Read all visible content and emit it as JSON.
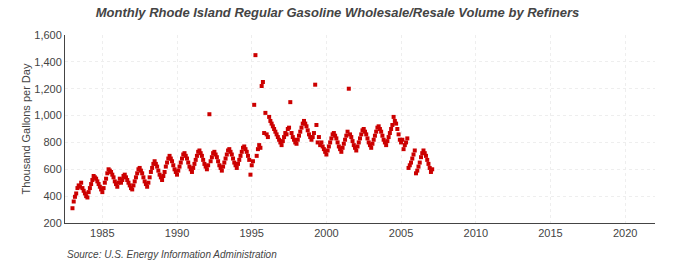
{
  "chart_data": {
    "type": "scatter",
    "title": "Monthly Rhode Island Regular Gasoline Wholesale/Resale Volume by Refiners",
    "y_label": "Thousand Gallons per Day",
    "annotations": [
      "Source: U.S. Energy Information Administration"
    ],
    "color": "#CC0000",
    "marker": "square",
    "grid": true,
    "xlim": [
      1982.5,
      2022
    ],
    "xticks": [
      1985,
      1990,
      1995,
      2000,
      2005,
      2010,
      2015,
      2020
    ],
    "ylim": [
      200,
      1600
    ],
    "yticks": [
      200,
      400,
      600,
      800,
      {
        "value": 1000,
        "label": "1,000"
      },
      {
        "value": 1200,
        "label": "1,200"
      },
      {
        "value": 1400,
        "label": "1,400"
      },
      {
        "value": 1600,
        "label": "1,600"
      }
    ],
    "x": [
      1983,
      1983.0833333333,
      1983.1666666667,
      1983.25,
      1983.3333333333,
      1983.4166666667,
      1983.5,
      1983.5833333333,
      1983.6666666667,
      1983.75,
      1983.8333333333,
      1983.9166666667,
      1984,
      1984.0833333333,
      1984.1666666667,
      1984.25,
      1984.3333333333,
      1984.4166666667,
      1984.5,
      1984.5833333333,
      1984.6666666667,
      1984.75,
      1984.8333333333,
      1984.9166666667,
      1985,
      1985.0833333333,
      1985.1666666667,
      1985.25,
      1985.3333333333,
      1985.4166666667,
      1985.5,
      1985.5833333333,
      1985.6666666667,
      1985.75,
      1985.8333333333,
      1985.9166666667,
      1986,
      1986.0833333333,
      1986.1666666667,
      1986.25,
      1986.3333333333,
      1986.4166666667,
      1986.5,
      1986.5833333333,
      1986.6666666667,
      1986.75,
      1986.8333333333,
      1986.9166666667,
      1987,
      1987.0833333333,
      1987.1666666667,
      1987.25,
      1987.3333333333,
      1987.4166666667,
      1987.5,
      1987.5833333333,
      1987.6666666667,
      1987.75,
      1987.8333333333,
      1987.9166666667,
      1988,
      1988.0833333333,
      1988.1666666667,
      1988.25,
      1988.3333333333,
      1988.4166666667,
      1988.5,
      1988.5833333333,
      1988.6666666667,
      1988.75,
      1988.8333333333,
      1988.9166666667,
      1989,
      1989.0833333333,
      1989.1666666667,
      1989.25,
      1989.3333333333,
      1989.4166666667,
      1989.5,
      1989.5833333333,
      1989.6666666667,
      1989.75,
      1989.8333333333,
      1989.9166666667,
      1990,
      1990.0833333333,
      1990.1666666667,
      1990.25,
      1990.3333333333,
      1990.4166666667,
      1990.5,
      1990.5833333333,
      1990.6666666667,
      1990.75,
      1990.8333333333,
      1990.9166666667,
      1991,
      1991.0833333333,
      1991.1666666667,
      1991.25,
      1991.3333333333,
      1991.4166666667,
      1991.5,
      1991.5833333333,
      1991.6666666667,
      1991.75,
      1991.8333333333,
      1991.9166666667,
      1992,
      1992.0833333333,
      1992.1666666667,
      1992.25,
      1992.3333333333,
      1992.4166666667,
      1992.5,
      1992.5833333333,
      1992.6666666667,
      1992.75,
      1992.8333333333,
      1992.9166666667,
      1993,
      1993.0833333333,
      1993.1666666667,
      1993.25,
      1993.3333333333,
      1993.4166666667,
      1993.5,
      1993.5833333333,
      1993.6666666667,
      1993.75,
      1993.8333333333,
      1993.9166666667,
      1994,
      1994.0833333333,
      1994.1666666667,
      1994.25,
      1994.3333333333,
      1994.4166666667,
      1994.5,
      1994.5833333333,
      1994.6666666667,
      1994.75,
      1994.8333333333,
      1994.9166666667,
      1995,
      1995.0833333333,
      1995.1666666667,
      1995.25,
      1995.3333333333,
      1995.4166666667,
      1995.5,
      1995.5833333333,
      1995.6666666667,
      1995.75,
      1995.8333333333,
      1995.9166666667,
      1996,
      1996.0833333333,
      1996.1666666667,
      1996.25,
      1996.3333333333,
      1996.4166666667,
      1996.5,
      1996.5833333333,
      1996.6666666667,
      1996.75,
      1996.8333333333,
      1996.9166666667,
      1997,
      1997.0833333333,
      1997.1666666667,
      1997.25,
      1997.3333333333,
      1997.4166666667,
      1997.5,
      1997.5833333333,
      1997.6666666667,
      1997.75,
      1997.8333333333,
      1997.9166666667,
      1998,
      1998.0833333333,
      1998.1666666667,
      1998.25,
      1998.3333333333,
      1998.4166666667,
      1998.5,
      1998.5833333333,
      1998.6666666667,
      1998.75,
      1998.8333333333,
      1998.9166666667,
      1999,
      1999.0833333333,
      1999.1666666667,
      1999.25,
      1999.3333333333,
      1999.4166666667,
      1999.5,
      1999.5833333333,
      1999.6666666667,
      1999.75,
      1999.8333333333,
      1999.9166666667,
      2000,
      2000.0833333333,
      2000.1666666667,
      2000.25,
      2000.3333333333,
      2000.4166666667,
      2000.5,
      2000.5833333333,
      2000.6666666667,
      2000.75,
      2000.8333333333,
      2000.9166666667,
      2001,
      2001.0833333333,
      2001.1666666667,
      2001.25,
      2001.3333333333,
      2001.4166666667,
      2001.5,
      2001.5833333333,
      2001.6666666667,
      2001.75,
      2001.8333333333,
      2001.9166666667,
      2002,
      2002.0833333333,
      2002.1666666667,
      2002.25,
      2002.3333333333,
      2002.4166666667,
      2002.5,
      2002.5833333333,
      2002.6666666667,
      2002.75,
      2002.8333333333,
      2002.9166666667,
      2003,
      2003.0833333333,
      2003.1666666667,
      2003.25,
      2003.3333333333,
      2003.4166666667,
      2003.5,
      2003.5833333333,
      2003.6666666667,
      2003.75,
      2003.8333333333,
      2003.9166666667,
      2004,
      2004.0833333333,
      2004.1666666667,
      2004.25,
      2004.3333333333,
      2004.4166666667,
      2004.5,
      2004.5833333333,
      2004.6666666667,
      2004.75,
      2004.8333333333,
      2004.9166666667,
      2005,
      2005.0833333333,
      2005.1666666667,
      2005.25,
      2005.3333333333,
      2005.4166666667,
      2005.5,
      2005.5833333333,
      2005.6666666667,
      2005.75,
      2005.8333333333,
      2005.9166666667,
      2006,
      2006.0833333333,
      2006.1666666667,
      2006.25,
      2006.3333333333,
      2006.4166666667,
      2006.5,
      2006.5833333333,
      2006.6666666667,
      2006.75,
      2006.8333333333,
      2006.9166666667,
      2007,
      2007.0833333333
    ],
    "values": [
      310,
      360,
      395,
      420,
      460,
      480,
      470,
      500,
      460,
      440,
      420,
      400,
      390,
      430,
      460,
      490,
      520,
      550,
      540,
      530,
      510,
      490,
      470,
      450,
      430,
      460,
      500,
      530,
      570,
      600,
      590,
      580,
      560,
      540,
      510,
      490,
      470,
      500,
      530,
      500,
      520,
      550,
      560,
      540,
      520,
      500,
      480,
      460,
      450,
      480,
      510,
      540,
      570,
      600,
      610,
      590,
      570,
      540,
      510,
      490,
      470,
      500,
      540,
      580,
      610,
      640,
      660,
      640,
      620,
      590,
      560,
      540,
      520,
      550,
      580,
      620,
      650,
      680,
      700,
      680,
      660,
      630,
      600,
      580,
      560,
      590,
      620,
      650,
      680,
      710,
      720,
      700,
      680,
      650,
      620,
      600,
      580,
      610,
      640,
      670,
      700,
      730,
      740,
      720,
      700,
      670,
      640,
      620,
      600,
      630,
      1010,
      660,
      690,
      720,
      730,
      710,
      690,
      660,
      630,
      610,
      590,
      620,
      650,
      680,
      710,
      740,
      750,
      730,
      710,
      680,
      650,
      630,
      610,
      640,
      670,
      700,
      730,
      760,
      770,
      750,
      730,
      700,
      670,
      560,
      630,
      660,
      1080,
      1450,
      700,
      750,
      780,
      760,
      1220,
      1250,
      870,
      1020,
      860,
      840,
      990,
      960,
      940,
      920,
      900,
      880,
      860,
      840,
      820,
      800,
      780,
      810,
      840,
      870,
      860,
      900,
      910,
      1100,
      870,
      840,
      820,
      800,
      790,
      820,
      850,
      880,
      910,
      940,
      960,
      940,
      920,
      890,
      860,
      840,
      820,
      840,
      870,
      1230,
      930,
      800,
      840,
      780,
      800,
      770,
      750,
      730,
      710,
      740,
      770,
      800,
      830,
      860,
      870,
      850,
      830,
      800,
      770,
      750,
      730,
      760,
      790,
      820,
      850,
      880,
      1200,
      860,
      840,
      810,
      780,
      760,
      740,
      770,
      800,
      830,
      860,
      890,
      900,
      880,
      860,
      830,
      800,
      780,
      760,
      790,
      820,
      850,
      880,
      910,
      920,
      900,
      880,
      850,
      820,
      800,
      780,
      810,
      840,
      870,
      900,
      930,
      990,
      960,
      940,
      900,
      860,
      820,
      800,
      820,
      750,
      780,
      800,
      830,
      610,
      630,
      650,
      680,
      710,
      740,
      570,
      590,
      620,
      650,
      690,
      720,
      740,
      720,
      700,
      670,
      640,
      610,
      580,
      600
    ]
  }
}
